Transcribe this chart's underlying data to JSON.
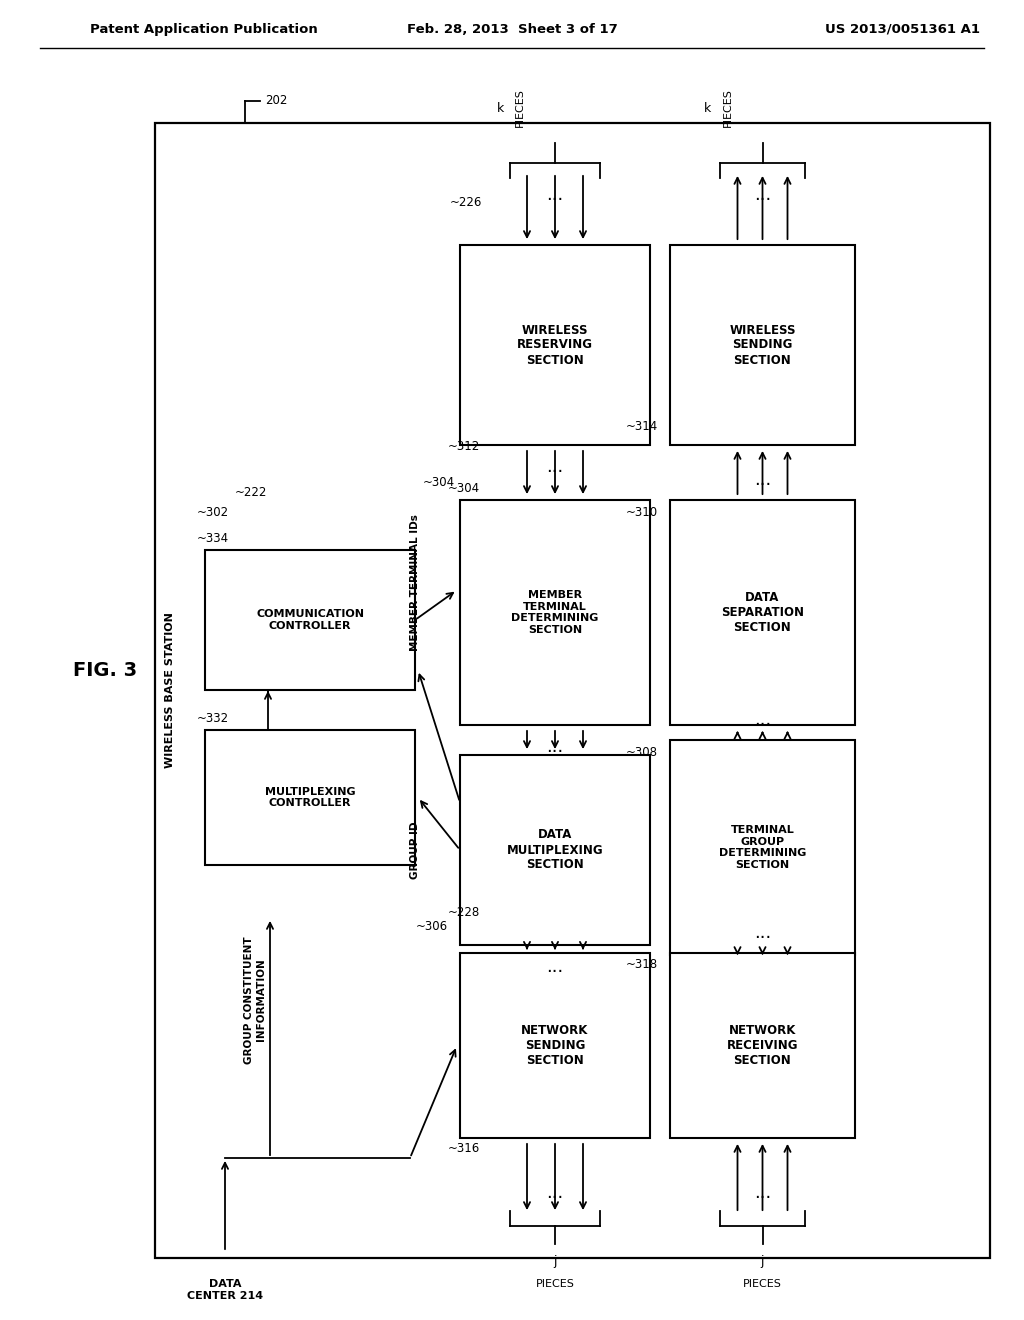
{
  "header_left": "Patent Application Publication",
  "header_mid": "Feb. 28, 2013  Sheet 3 of 17",
  "header_right": "US 2013/0051361 A1",
  "fig_label": "FIG. 3",
  "bg_color": "#ffffff"
}
